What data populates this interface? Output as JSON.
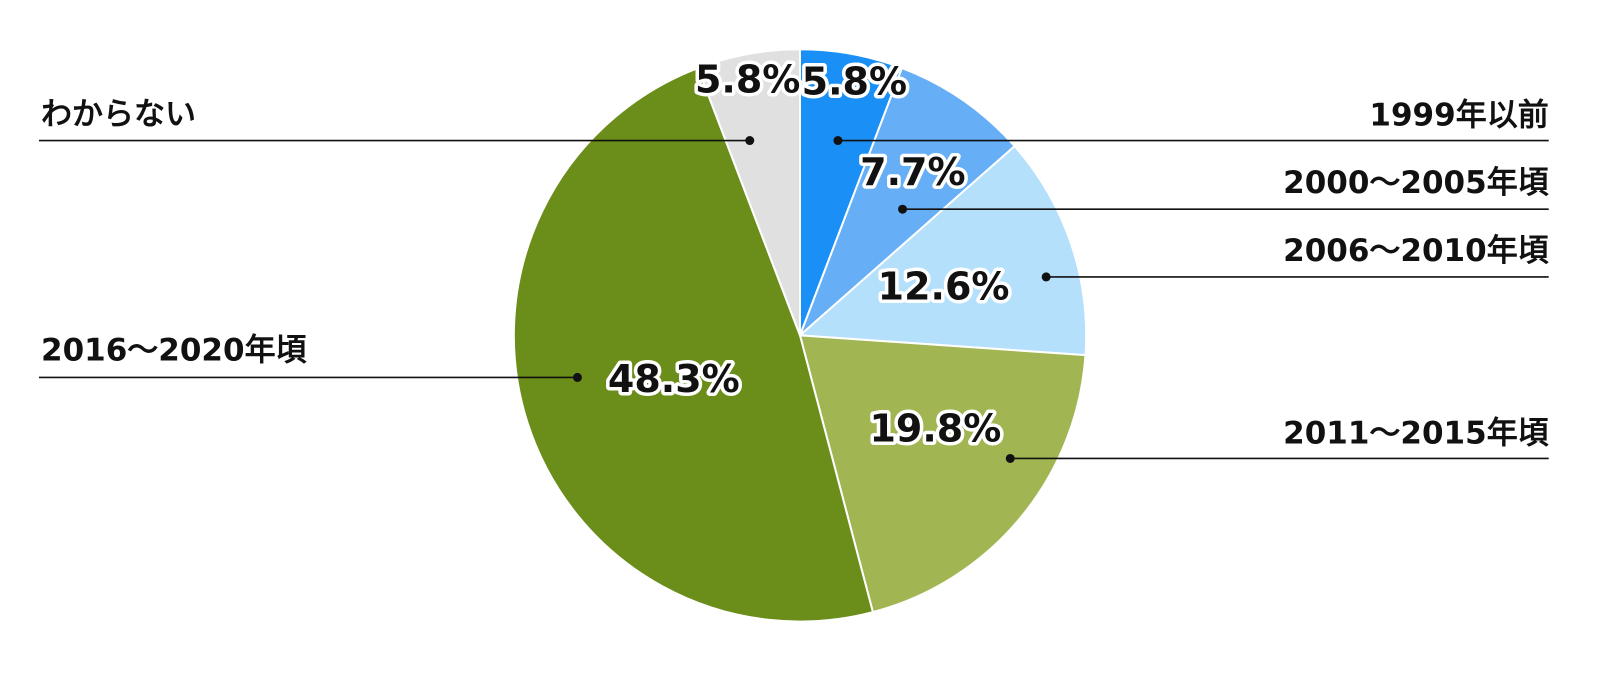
{
  "chart_data": {
    "type": "pie",
    "categories": [
      "1999年以前",
      "2000〜2005年頃",
      "2006〜2010年頃",
      "2011〜2015年頃",
      "2016〜2020年頃",
      "わからない"
    ],
    "values": [
      5.8,
      7.7,
      12.6,
      19.8,
      48.3,
      5.8
    ],
    "value_labels": [
      "5.8%",
      "7.7%",
      "12.6%",
      "19.8%",
      "48.3%",
      "5.8%"
    ],
    "colors": [
      "#1a8ff5",
      "#66aef5",
      "#b5e0fc",
      "#a1b652",
      "#6b8e1a",
      "#e0e0e0"
    ]
  }
}
